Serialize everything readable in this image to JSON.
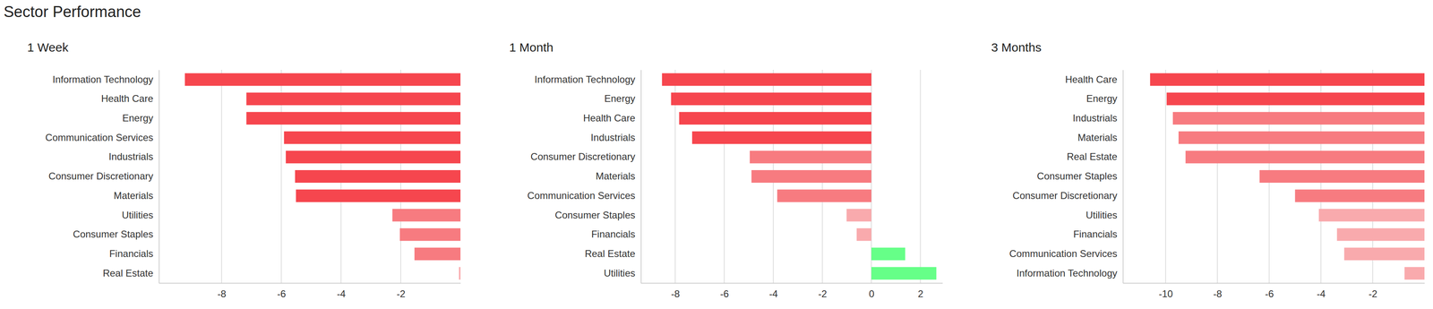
{
  "title": "Sector Performance",
  "chart_data": [
    {
      "type": "bar",
      "title": "1 Week",
      "orientation": "horizontal",
      "grid": true,
      "categories": [
        "Information Technology",
        "Health Care",
        "Energy",
        "Communication Services",
        "Industrials",
        "Consumer Discretionary",
        "Materials",
        "Utilities",
        "Consumer Staples",
        "Financials",
        "Real Estate"
      ],
      "values": [
        -9.23,
        -7.17,
        -7.17,
        -5.91,
        -5.85,
        -5.54,
        -5.51,
        -2.28,
        -2.03,
        -1.54,
        -0.05
      ],
      "colors": [
        "#f6464e",
        "#f6464e",
        "#f6464e",
        "#f6464e",
        "#f6464e",
        "#f6464e",
        "#f6464e",
        "#f77b80",
        "#f77b80",
        "#f77b80",
        "#f9aaad"
      ],
      "xlim": [
        -10.1,
        0
      ],
      "xticks": [
        -8,
        -6,
        -4,
        -2
      ]
    },
    {
      "type": "bar",
      "title": "1 Month",
      "orientation": "horizontal",
      "grid": true,
      "categories": [
        "Information Technology",
        "Energy",
        "Health Care",
        "Industrials",
        "Consumer Discretionary",
        "Materials",
        "Communication Services",
        "Consumer Staples",
        "Financials",
        "Real Estate",
        "Utilities"
      ],
      "values": [
        -8.54,
        -8.17,
        -7.84,
        -7.31,
        -4.96,
        -4.89,
        -3.84,
        -1.01,
        -0.6,
        1.38,
        2.65
      ],
      "colors": [
        "#f6464e",
        "#f6464e",
        "#f6464e",
        "#f6464e",
        "#f77b80",
        "#f77b80",
        "#f77b80",
        "#f9aaad",
        "#f9aaad",
        "#66ff88",
        "#66ff88"
      ],
      "xlim": [
        -9.4,
        2.9
      ],
      "xticks": [
        -8,
        -6,
        -4,
        -2,
        0,
        2
      ]
    },
    {
      "type": "bar",
      "title": "3 Months",
      "orientation": "horizontal",
      "grid": true,
      "categories": [
        "Health Care",
        "Energy",
        "Industrials",
        "Materials",
        "Real Estate",
        "Consumer Staples",
        "Consumer Discretionary",
        "Utilities",
        "Financials",
        "Communication Services",
        "Information Technology"
      ],
      "values": [
        -10.6,
        -9.96,
        -9.72,
        -9.5,
        -9.23,
        -6.37,
        -5.0,
        -4.08,
        -3.38,
        -3.1,
        -0.77
      ],
      "colors": [
        "#f6464e",
        "#f6464e",
        "#f77b80",
        "#f77b80",
        "#f77b80",
        "#f77b80",
        "#f77b80",
        "#f9aaad",
        "#f9aaad",
        "#f9aaad",
        "#f9aaad"
      ],
      "xlim": [
        -11.65,
        0
      ],
      "xticks": [
        -10,
        -8,
        -6,
        -4,
        -2
      ]
    }
  ]
}
